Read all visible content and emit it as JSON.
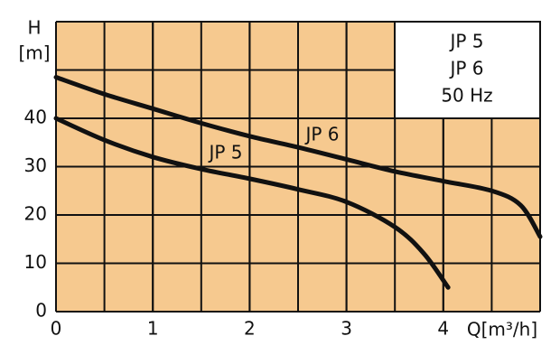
{
  "chart_data": {
    "type": "line",
    "ylabel": "H",
    "yunit": "[m]",
    "xlabel": "Q[m³/h]",
    "info_box": [
      "JP 5",
      "JP 6",
      "50 Hz"
    ],
    "background": "#f6c98f",
    "grid": true,
    "xlim": [
      0,
      5
    ],
    "ylim": [
      0,
      60
    ],
    "xticks": [
      0,
      1,
      2,
      3,
      4
    ],
    "yticks": [
      0,
      10,
      20,
      30,
      40
    ],
    "xgrid": [
      0.5,
      1,
      1.5,
      2,
      2.5,
      3,
      3.5,
      4,
      4.5,
      5
    ],
    "ygrid": [
      10,
      20,
      30,
      40,
      50,
      60
    ],
    "series": [
      {
        "name": "JP 5",
        "color": "#111111",
        "x": [
          0,
          0.5,
          1,
          1.5,
          2,
          2.5,
          3,
          3.5,
          3.8,
          4.05
        ],
        "values": [
          40,
          35.5,
          32,
          29.5,
          27.5,
          25.3,
          22.7,
          17.5,
          12,
          5
        ]
      },
      {
        "name": "JP 6",
        "color": "#111111",
        "x": [
          0,
          0.5,
          1,
          1.5,
          2,
          2.5,
          3,
          3.5,
          4,
          4.5,
          4.8,
          5
        ],
        "values": [
          48.5,
          45,
          42,
          39,
          36.3,
          34,
          31.5,
          29,
          27,
          25,
          22,
          15.5
        ]
      }
    ]
  }
}
